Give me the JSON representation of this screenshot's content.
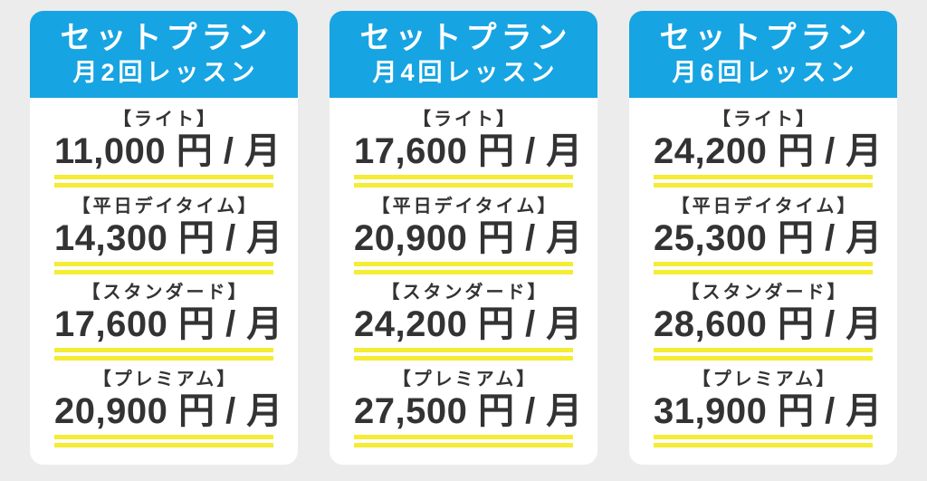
{
  "colors": {
    "page_background": "#ececec",
    "header_background": "#17a4e2",
    "header_text": "#ffffff",
    "card_background": "#ffffff",
    "text": "#333333",
    "underline_yellow": "#f5ec35"
  },
  "cards": [
    {
      "title_line1": "セットプラン",
      "title_line2": "月2回レッスン",
      "tiers": [
        {
          "label": "【ライト】",
          "price": "11,000 円 / 月"
        },
        {
          "label": "【平日デイタイム】",
          "price": "14,300 円 / 月"
        },
        {
          "label": "【スタンダード】",
          "price": "17,600 円 / 月"
        },
        {
          "label": "【プレミアム】",
          "price": "20,900 円 / 月"
        }
      ]
    },
    {
      "title_line1": "セットプラン",
      "title_line2": "月4回レッスン",
      "tiers": [
        {
          "label": "【ライト】",
          "price": "17,600 円 / 月"
        },
        {
          "label": "【平日デイタイム】",
          "price": "20,900 円 / 月"
        },
        {
          "label": "【スタンダード】",
          "price": "24,200 円 / 月"
        },
        {
          "label": "【プレミアム】",
          "price": "27,500 円 / 月"
        }
      ]
    },
    {
      "title_line1": "セットプラン",
      "title_line2": "月6回レッスン",
      "tiers": [
        {
          "label": "【ライト】",
          "price": "24,200 円 / 月"
        },
        {
          "label": "【平日デイタイム】",
          "price": "25,300 円 / 月"
        },
        {
          "label": "【スタンダード】",
          "price": "28,600 円 / 月"
        },
        {
          "label": "【プレミアム】",
          "price": "31,900 円 / 月"
        }
      ]
    }
  ],
  "chart_data": {
    "type": "table",
    "columns": [
      "プラン",
      "月2回レッスン",
      "月4回レッスン",
      "月6回レッスン"
    ],
    "rows": [
      [
        "ライト",
        "11,000 円 / 月",
        "17,600 円 / 月",
        "24,200 円 / 月"
      ],
      [
        "平日デイタイム",
        "14,300 円 / 月",
        "20,900 円 / 月",
        "25,300 円 / 月"
      ],
      [
        "スタンダード",
        "17,600 円 / 月",
        "24,200 円 / 月",
        "28,600 円 / 月"
      ],
      [
        "プレミアム",
        "20,900 円 / 月",
        "27,500 円 / 月",
        "31,900 円 / 月"
      ]
    ],
    "values_yen_per_month": {
      "月2回レッスン": {
        "ライト": 11000,
        "平日デイタイム": 14300,
        "スタンダード": 17600,
        "プレミアム": 20900
      },
      "月4回レッスン": {
        "ライト": 17600,
        "平日デイタイム": 20900,
        "スタンダード": 24200,
        "プレミアム": 27500
      },
      "月6回レッスン": {
        "ライト": 24200,
        "平日デイタイム": 25300,
        "スタンダード": 28600,
        "プレミアム": 31900
      }
    }
  }
}
